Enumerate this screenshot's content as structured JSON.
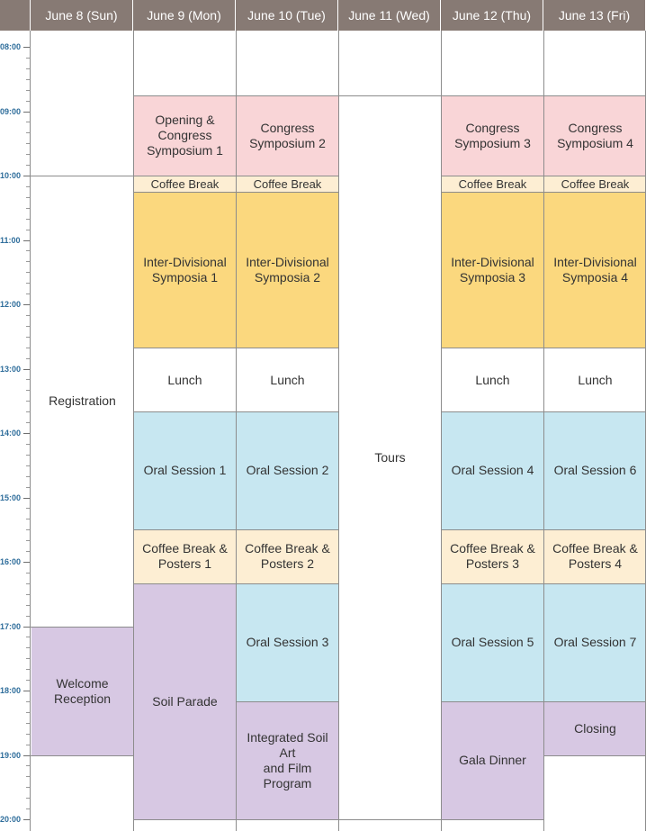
{
  "headers": [
    "June 8 (Sun)",
    "June 9 (Mon)",
    "June 10 (Tue)",
    "June 11 (Wed)",
    "June 12 (Thu)",
    "June 13 (Fri)"
  ],
  "time_labels": [
    "08:00",
    "09:00",
    "10:00",
    "11:00",
    "12:00",
    "13:00",
    "14:00",
    "15:00",
    "16:00",
    "17:00",
    "18:00",
    "19:00",
    "20:00"
  ],
  "events": [
    {
      "day": 0,
      "start": "10:00",
      "end": "17:00",
      "label": "Registration",
      "kind": "white"
    },
    {
      "day": 0,
      "start": "17:00",
      "end": "19:00",
      "label": "Welcome\nReception",
      "kind": "lilac"
    },
    {
      "day": 1,
      "start": "08:45",
      "end": "10:00",
      "label": "Opening &\nCongress\nSymposium 1",
      "kind": "pink"
    },
    {
      "day": 1,
      "start": "10:00",
      "end": "10:15",
      "label": "Coffee Break",
      "kind": "cream"
    },
    {
      "day": 1,
      "start": "10:15",
      "end": "12:40",
      "label": "Inter-Divisional\nSymposia 1",
      "kind": "gold"
    },
    {
      "day": 1,
      "start": "12:40",
      "end": "13:40",
      "label": "Lunch",
      "kind": "white"
    },
    {
      "day": 1,
      "start": "13:40",
      "end": "15:30",
      "label": "Oral Session 1",
      "kind": "blue"
    },
    {
      "day": 1,
      "start": "15:30",
      "end": "16:20",
      "label": "Coffee Break &\nPosters 1",
      "kind": "cream"
    },
    {
      "day": 1,
      "start": "16:20",
      "end": "20:00",
      "label": "Soil Parade",
      "kind": "lilac"
    },
    {
      "day": 2,
      "start": "08:45",
      "end": "10:00",
      "label": "Congress\nSymposium 2",
      "kind": "pink"
    },
    {
      "day": 2,
      "start": "10:00",
      "end": "10:15",
      "label": "Coffee Break",
      "kind": "cream"
    },
    {
      "day": 2,
      "start": "10:15",
      "end": "12:40",
      "label": "Inter-Divisional\nSymposia 2",
      "kind": "gold"
    },
    {
      "day": 2,
      "start": "12:40",
      "end": "13:40",
      "label": "Lunch",
      "kind": "white"
    },
    {
      "day": 2,
      "start": "13:40",
      "end": "15:30",
      "label": "Oral Session 2",
      "kind": "blue"
    },
    {
      "day": 2,
      "start": "15:30",
      "end": "16:20",
      "label": "Coffee Break &\nPosters 2",
      "kind": "cream"
    },
    {
      "day": 2,
      "start": "16:20",
      "end": "18:10",
      "label": "Oral Session 3",
      "kind": "blue"
    },
    {
      "day": 2,
      "start": "18:10",
      "end": "20:00",
      "label": "Integrated Soil Art\nand Film Program",
      "kind": "lilac"
    },
    {
      "day": 3,
      "start": "08:45",
      "end": "20:00",
      "label": "Tours",
      "kind": "white"
    },
    {
      "day": 4,
      "start": "08:45",
      "end": "10:00",
      "label": "Congress\nSymposium 3",
      "kind": "pink"
    },
    {
      "day": 4,
      "start": "10:00",
      "end": "10:15",
      "label": "Coffee Break",
      "kind": "cream"
    },
    {
      "day": 4,
      "start": "10:15",
      "end": "12:40",
      "label": "Inter-Divisional\nSymposia 3",
      "kind": "gold"
    },
    {
      "day": 4,
      "start": "12:40",
      "end": "13:40",
      "label": "Lunch",
      "kind": "white"
    },
    {
      "day": 4,
      "start": "13:40",
      "end": "15:30",
      "label": "Oral Session 4",
      "kind": "blue"
    },
    {
      "day": 4,
      "start": "15:30",
      "end": "16:20",
      "label": "Coffee Break &\nPosters 3",
      "kind": "cream"
    },
    {
      "day": 4,
      "start": "16:20",
      "end": "18:10",
      "label": "Oral Session 5",
      "kind": "blue"
    },
    {
      "day": 4,
      "start": "18:10",
      "end": "20:00",
      "label": "Gala Dinner",
      "kind": "lilac"
    },
    {
      "day": 5,
      "start": "08:45",
      "end": "10:00",
      "label": "Congress\nSymposium 4",
      "kind": "pink"
    },
    {
      "day": 5,
      "start": "10:00",
      "end": "10:15",
      "label": "Coffee Break",
      "kind": "cream"
    },
    {
      "day": 5,
      "start": "10:15",
      "end": "12:40",
      "label": "Inter-Divisional\nSymposia 4",
      "kind": "gold"
    },
    {
      "day": 5,
      "start": "12:40",
      "end": "13:40",
      "label": "Lunch",
      "kind": "white"
    },
    {
      "day": 5,
      "start": "13:40",
      "end": "15:30",
      "label": "Oral Session 6",
      "kind": "blue"
    },
    {
      "day": 5,
      "start": "15:30",
      "end": "16:20",
      "label": "Coffee Break &\nPosters 4",
      "kind": "cream"
    },
    {
      "day": 5,
      "start": "16:20",
      "end": "18:10",
      "label": "Oral Session 7",
      "kind": "blue"
    },
    {
      "day": 5,
      "start": "18:10",
      "end": "19:00",
      "label": "Closing",
      "kind": "lilac"
    }
  ],
  "colors": {
    "header": "#877a74",
    "time_label": "#2e6d9b",
    "pink": "#f9d5d7",
    "cream": "#fdeed3",
    "gold": "#fbd87e",
    "blue": "#c7e7f1",
    "lilac": "#d7c8e3"
  }
}
